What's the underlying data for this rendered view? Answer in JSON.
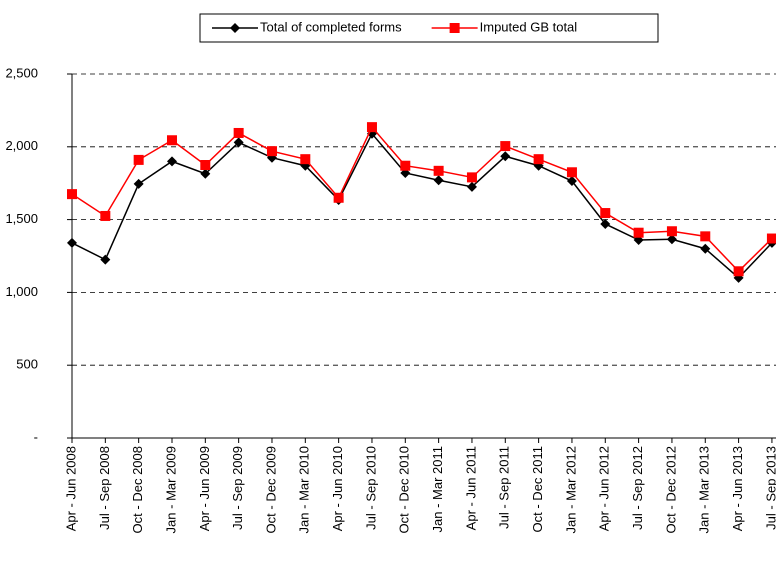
{
  "chart_data": {
    "type": "line",
    "categories": [
      "Apr - Jun 2008",
      "Jul - Sep 2008",
      "Oct - Dec 2008",
      "Jan - Mar 2009",
      "Apr - Jun 2009",
      "Jul - Sep 2009",
      "Oct - Dec 2009",
      "Jan - Mar 2010",
      "Apr - Jun 2010",
      "Jul - Sep 2010",
      "Oct - Dec 2010",
      "Jan - Mar 2011",
      "Apr - Jun 2011",
      "Jul - Sep 2011",
      "Oct - Dec 2011",
      "Jan - Mar 2012",
      "Apr - Jun 2012",
      "Jul - Sep 2012",
      "Oct - Dec 2012",
      "Jan - Mar 2013",
      "Apr - Jun 2013",
      "Jul - Sep 2013"
    ],
    "series": [
      {
        "name": "Total of completed forms",
        "color": "#000000",
        "marker": "diamond",
        "values": [
          1340,
          1225,
          1745,
          1900,
          1815,
          2030,
          1925,
          1870,
          1635,
          2090,
          1820,
          1770,
          1725,
          1935,
          1870,
          1765,
          1470,
          1360,
          1365,
          1300,
          1100,
          1340
        ]
      },
      {
        "name": "Imputed GB total",
        "color": "#ff0000",
        "marker": "square",
        "values": [
          1675,
          1525,
          1910,
          2045,
          1875,
          2095,
          1970,
          1915,
          1650,
          2135,
          1870,
          1835,
          1790,
          2005,
          1915,
          1825,
          1545,
          1410,
          1420,
          1385,
          1145,
          1370
        ]
      }
    ],
    "ylim": [
      0,
      2500
    ],
    "yticks": [
      {
        "value": 0,
        "label": "-"
      },
      500,
      {
        "value": 1000,
        "label": "1,000"
      },
      {
        "value": 1500,
        "label": "1,500"
      },
      {
        "value": 2000,
        "label": "2,000"
      },
      {
        "value": 2500,
        "label": "2,500"
      }
    ],
    "grid": true,
    "legend": "top"
  }
}
